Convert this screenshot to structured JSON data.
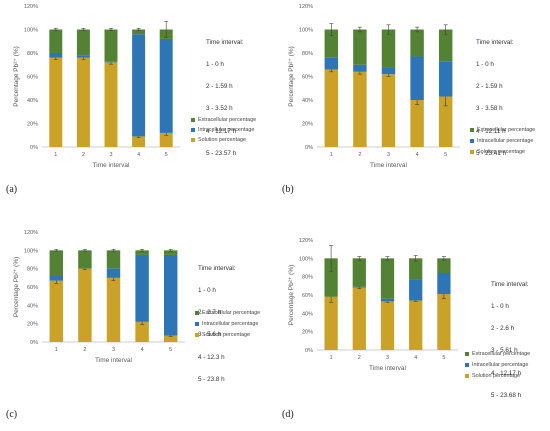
{
  "colors": {
    "extracellular": "#548235",
    "intracellular": "#2E75B6",
    "solution": "#C9A227",
    "grid": "#d9d9d9",
    "axis": "#bfbfbf",
    "error_bar": "#404040"
  },
  "chart_data": [
    {
      "type": "bar",
      "stacked": true,
      "panel_label": "(a)",
      "categories": [
        "1",
        "2",
        "3",
        "4",
        "5"
      ],
      "xlabel": "Time interval",
      "ylabel": "Percentage Pb²⁺ (%)",
      "ylim": [
        0,
        120
      ],
      "yticks": [
        "0%",
        "20%",
        "40%",
        "60%",
        "80%",
        "100%",
        "120%"
      ],
      "grid": false,
      "legend_position": "right",
      "time_interval_title": "Time interval:",
      "time_intervals": [
        "1 - 0 h",
        "2 - 1.59 h",
        "3 - 3.52 h",
        "4 - 12.17 h",
        "5 - 23.57 h"
      ],
      "series": [
        {
          "name": "Solution percentage",
          "key": "solution",
          "values": [
            76,
            76,
            72,
            9,
            12
          ],
          "error": [
            1.5,
            1.5,
            1.5,
            1,
            2
          ]
        },
        {
          "name": "Intracellular percentage",
          "key": "intracellular",
          "values": [
            4,
            2,
            1,
            87,
            80
          ],
          "error": [
            0,
            0,
            0,
            0,
            0
          ]
        },
        {
          "name": "Extracellular percentage",
          "key": "extracellular",
          "values": [
            20,
            22,
            27,
            4,
            8
          ],
          "error": [
            1,
            1,
            1,
            1,
            7
          ]
        }
      ]
    },
    {
      "type": "bar",
      "stacked": true,
      "panel_label": "(b)",
      "categories": [
        "1",
        "2",
        "3",
        "4",
        "5"
      ],
      "xlabel": "Time interval",
      "ylabel": "Percentage Pb²⁺ (%)",
      "ylim": [
        0,
        120
      ],
      "yticks": [
        "0%",
        "20%",
        "40%",
        "60%",
        "80%",
        "100%",
        "120%"
      ],
      "grid": false,
      "legend_position": "right",
      "time_interval_title": "Time interval:",
      "time_intervals": [
        "1 - 0 h",
        "2 - 1.59 h",
        "3 - 3.58 h",
        "4 - 12.11 h",
        "5 - 23.41 h"
      ],
      "series": [
        {
          "name": "Solution percentage",
          "key": "solution",
          "values": [
            66,
            64,
            62,
            40,
            43
          ],
          "error": [
            2,
            2,
            2,
            4,
            8
          ]
        },
        {
          "name": "Intracellular percentage",
          "key": "intracellular",
          "values": [
            10,
            6,
            6,
            37,
            30
          ],
          "error": [
            0,
            0,
            0,
            0,
            0
          ]
        },
        {
          "name": "Extracellular percentage",
          "key": "extracellular",
          "values": [
            24,
            30,
            32,
            23,
            27
          ],
          "error": [
            5,
            2,
            4,
            2,
            4
          ]
        }
      ]
    },
    {
      "type": "bar",
      "stacked": true,
      "panel_label": "(c)",
      "categories": [
        "1",
        "2",
        "3",
        "4",
        "5"
      ],
      "xlabel": "Time interval",
      "ylabel": "Percentage Pb²⁺ (%)",
      "ylim": [
        0,
        120
      ],
      "yticks": [
        "0%",
        "20%",
        "40%",
        "60%",
        "80%",
        "100%",
        "120%"
      ],
      "grid": false,
      "legend_position": "right",
      "time_interval_title": "Time interval:",
      "time_intervals": [
        "1 - 0 h",
        "2 - 2.7 h",
        "3 - 5.6 h",
        "4 - 12.3 h",
        "5 - 23.8 h"
      ],
      "series": [
        {
          "name": "Solution percentage",
          "key": "solution",
          "values": [
            67,
            80,
            70,
            22,
            7
          ],
          "error": [
            3,
            1,
            3,
            3,
            1
          ]
        },
        {
          "name": "Intracellular percentage",
          "key": "intracellular",
          "values": [
            5,
            0,
            10,
            73,
            88
          ],
          "error": [
            0,
            0,
            0,
            0,
            0
          ]
        },
        {
          "name": "Extracellular percentage",
          "key": "extracellular",
          "values": [
            28,
            20,
            20,
            5,
            5
          ],
          "error": [
            1,
            1,
            1,
            1,
            1
          ]
        }
      ]
    },
    {
      "type": "bar",
      "stacked": true,
      "panel_label": "(d)",
      "categories": [
        "1",
        "2",
        "3",
        "4",
        "5"
      ],
      "xlabel": "Time interval",
      "ylabel": "Percentage Pb²⁺ (%)",
      "ylim": [
        0,
        120
      ],
      "yticks": [
        "0%",
        "20%",
        "40%",
        "60%",
        "80%",
        "100%",
        "120%"
      ],
      "grid": false,
      "legend_position": "right",
      "time_interval_title": "Time interval:",
      "time_intervals": [
        "1 - 0 h",
        "2 - 2.6 h",
        "3 - 5.61 h",
        "4 - 12.17 h",
        "5 - 23.68 h"
      ],
      "series": [
        {
          "name": "Solution percentage",
          "key": "solution",
          "values": [
            58,
            68,
            53,
            54,
            61
          ],
          "error": [
            6,
            1,
            1,
            1,
            5
          ]
        },
        {
          "name": "Intracellular percentage",
          "key": "intracellular",
          "values": [
            0,
            1,
            3,
            23,
            23
          ],
          "error": [
            0,
            0,
            0,
            0,
            0
          ]
        },
        {
          "name": "Extracellular percentage",
          "key": "extracellular",
          "values": [
            42,
            31,
            44,
            23,
            16
          ],
          "error": [
            14,
            2,
            2,
            3,
            2
          ]
        }
      ]
    }
  ]
}
